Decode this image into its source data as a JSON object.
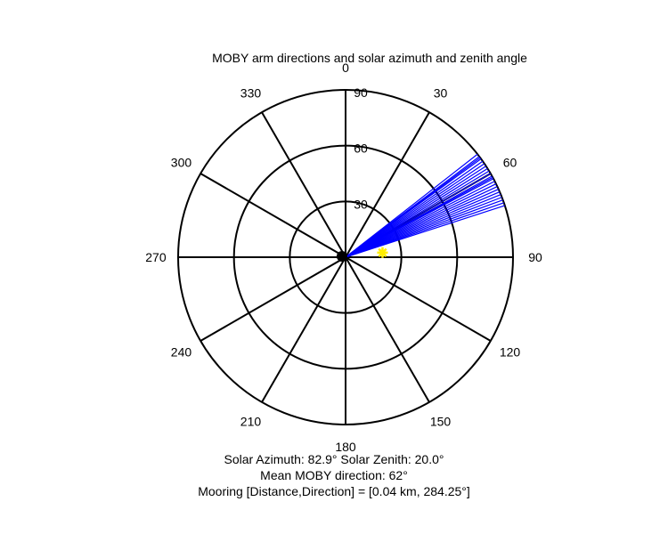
{
  "chart_data": {
    "type": "polar",
    "title": "MOBY arm directions and solar azimuth and zenith angle",
    "angle_direction": "clockwise",
    "zero_direction": "top",
    "angle_ticks": [
      0,
      30,
      60,
      90,
      120,
      150,
      180,
      210,
      240,
      270,
      300,
      330
    ],
    "angle_tick_labels": [
      "0",
      "30",
      "60",
      "90",
      "120",
      "150",
      "180",
      "210",
      "240",
      "270",
      "300",
      "330"
    ],
    "radial_max": 90,
    "radial_ticks": [
      30,
      60,
      90
    ],
    "radial_tick_labels": [
      "30",
      "60",
      "90"
    ],
    "moby_arm_series": {
      "color": "#0000ff",
      "arm_azimuths_deg": [
        52,
        53,
        53.5,
        54,
        55,
        56,
        57,
        58,
        59,
        60,
        61,
        61.5,
        62,
        63,
        64,
        65,
        66,
        67,
        68,
        69,
        70,
        71,
        72
      ],
      "arm_length_r": 90
    },
    "moby_position": {
      "r": 2,
      "theta_deg": 284.25,
      "color": "#000000"
    },
    "sun_marker": {
      "theta_deg": 82.9,
      "r": 20.0,
      "color": "#ffee00"
    },
    "caption": {
      "line1": "Solar Azimuth: 82.9°    Solar Zenith: 20.0°",
      "line2": "Mean MOBY direction: 62°",
      "line3": "Mooring [Distance,Direction] = [0.04 km, 284.25°]"
    }
  }
}
